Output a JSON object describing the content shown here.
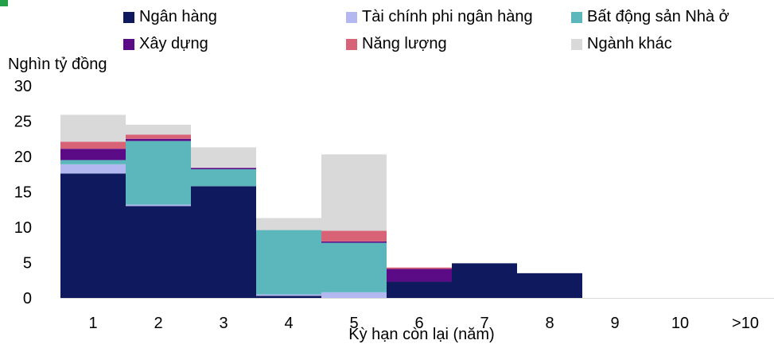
{
  "chart_data": {
    "type": "bar",
    "stacked": true,
    "title": "",
    "ylabel": "Nghìn tỷ đồng",
    "xlabel": "Kỳ hạn còn lại (năm)",
    "ylim": [
      0,
      30
    ],
    "yticks": [
      0,
      5,
      10,
      15,
      20,
      25,
      30
    ],
    "grid": false,
    "legend_position": "top",
    "categories": [
      "1",
      "2",
      "3",
      "4",
      "5",
      "6",
      "7",
      "8",
      "9",
      "10",
      ">10"
    ],
    "series": [
      {
        "name": "Ngân hàng",
        "color": "#0f1a5e",
        "values": [
          17.6,
          13.0,
          15.8,
          0.3,
          0,
          2.3,
          4.9,
          3.5,
          0,
          0,
          0
        ]
      },
      {
        "name": "Tài chính phi ngân hàng",
        "color": "#b3b8f0",
        "values": [
          1.3,
          0.2,
          0,
          0.2,
          0.8,
          0,
          0,
          0,
          0,
          0,
          0
        ]
      },
      {
        "name": "Bất động sản Nhà ở",
        "color": "#5bb7bb",
        "values": [
          0.6,
          9.0,
          2.4,
          9.1,
          7.0,
          0,
          0,
          0,
          0,
          0,
          0
        ]
      },
      {
        "name": "Xây dựng",
        "color": "#5c0b87",
        "values": [
          1.6,
          0.3,
          0.2,
          0,
          0.2,
          1.8,
          0,
          0,
          0,
          0,
          0
        ]
      },
      {
        "name": "Năng lượng",
        "color": "#d86377",
        "values": [
          1.0,
          0.6,
          0,
          0,
          1.5,
          0.2,
          0,
          0,
          0,
          0,
          0
        ]
      },
      {
        "name": "Ngành khác",
        "color": "#d9d9d9",
        "values": [
          3.8,
          1.4,
          2.9,
          1.7,
          10.8,
          0,
          0,
          0,
          0,
          0,
          0
        ]
      }
    ]
  }
}
